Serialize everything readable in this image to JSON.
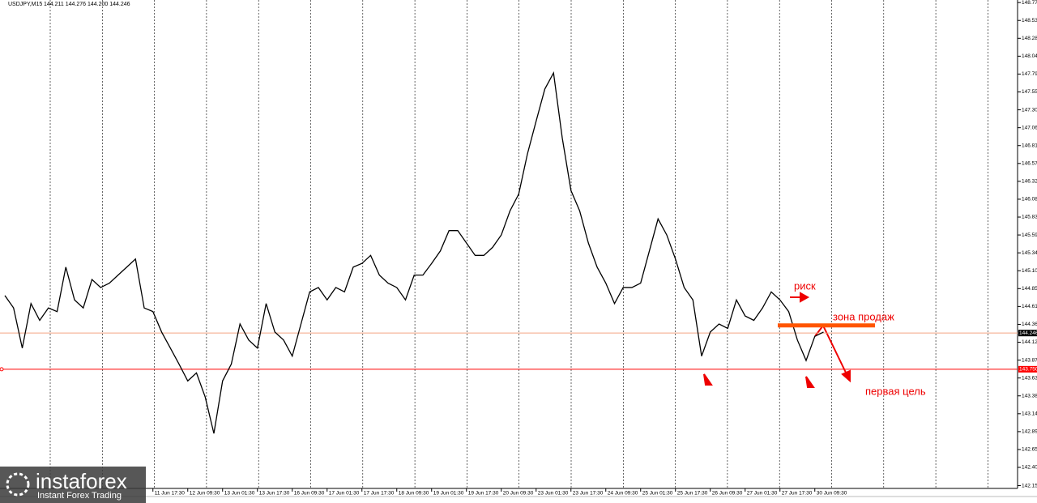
{
  "chart_data": {
    "type": "line",
    "title": "USDJPY,M15",
    "subtitle": "144.211 144.276 144.200 144.246",
    "categories": [
      null,
      null,
      null,
      null,
      null,
      null,
      null,
      null,
      null,
      null,
      null,
      null,
      null,
      null,
      null,
      null,
      null,
      "11 Jun 17:30",
      null,
      null,
      null,
      "12 Jun 09:30",
      null,
      null,
      null,
      "13 Jun 01:30",
      null,
      null,
      null,
      "13 Jun 17:30",
      null,
      null,
      null,
      "16 Jun 09:30",
      null,
      null,
      null,
      "17 Jun 01:30",
      null,
      null,
      null,
      "17 Jun 17:30",
      null,
      null,
      null,
      "18 Jun 09:30",
      null,
      null,
      null,
      "19 Jun 01:30",
      null,
      null,
      null,
      "19 Jun 17:30",
      null,
      null,
      null,
      "20 Jun 09:30",
      null,
      null,
      null,
      "23 Jun 01:30",
      null,
      null,
      null,
      "23 Jun 17:30",
      null,
      null,
      null,
      "24 Jun 09:30",
      null,
      null,
      null,
      "25 Jun 01:30",
      null,
      null,
      null,
      "25 Jun 17:30",
      null,
      null,
      null,
      "26 Jun 09:30",
      null,
      null,
      null,
      "27 Jun 01:30",
      null,
      null,
      null,
      "27 Jun 17:30",
      null,
      null,
      null,
      "30 Jun 09:30",
      null
    ],
    "series": [
      {
        "name": "USDJPY",
        "color": "#000000",
        "values": [
          144.76,
          144.59,
          144.04,
          144.65,
          144.42,
          144.59,
          144.54,
          145.15,
          144.7,
          144.59,
          144.98,
          144.87,
          144.93,
          145.04,
          145.15,
          145.26,
          144.59,
          144.54,
          144.26,
          144.04,
          143.82,
          143.59,
          143.7,
          143.37,
          142.87,
          143.59,
          143.82,
          144.37,
          144.15,
          144.04,
          144.65,
          144.26,
          144.15,
          143.93,
          144.37,
          144.81,
          144.87,
          144.7,
          144.87,
          144.81,
          145.15,
          145.2,
          145.31,
          145.04,
          144.93,
          144.87,
          144.7,
          145.04,
          145.04,
          145.2,
          145.37,
          145.65,
          145.65,
          145.48,
          145.31,
          145.31,
          145.42,
          145.59,
          145.92,
          146.15,
          146.7,
          147.15,
          147.59,
          147.81,
          146.92,
          146.2,
          145.92,
          145.48,
          145.15,
          144.93,
          144.65,
          144.87,
          144.87,
          144.93,
          145.37,
          145.81,
          145.59,
          145.26,
          144.87,
          144.7,
          143.93,
          144.26,
          144.37,
          144.31,
          144.7,
          144.48,
          144.42,
          144.59,
          144.81,
          144.7,
          144.54,
          144.15,
          143.87,
          144.2,
          144.26
        ]
      }
    ],
    "ylim": [
      142.15,
      148.81
    ],
    "yticks": [
      148.775,
      {
        "value": 148.53,
        "label": "148.530"
      },
      148.285,
      {
        "value": 148.04,
        "label": "148.040"
      },
      147.795,
      {
        "value": 147.55,
        "label": "147.550"
      },
      147.305,
      {
        "value": 147.06,
        "label": "147.060"
      },
      146.815,
      {
        "value": 146.57,
        "label": "146.570"
      },
      146.325,
      {
        "value": 146.08,
        "label": "146.080"
      },
      145.835,
      {
        "value": 145.59,
        "label": "145.590"
      },
      145.345,
      {
        "value": 145.1,
        "label": "145.100"
      },
      144.855,
      {
        "value": 144.61,
        "label": "144.610"
      },
      144.365,
      {
        "value": 144.12,
        "label": "144.120"
      },
      143.875,
      {
        "value": 143.63,
        "label": "143.630"
      },
      143.385,
      {
        "value": 143.14,
        "label": "143.140"
      },
      142.895,
      {
        "value": 142.65,
        "label": "142.650"
      },
      142.405,
      142.155
    ],
    "levels": [
      {
        "value": 143.75,
        "label": "143.750",
        "color": "#ff0000"
      }
    ],
    "current_price": {
      "value": 144.246,
      "label": "144.246",
      "color": "#f4a582"
    },
    "sell_zone": {
      "value": 144.35,
      "color": "#ff5500"
    },
    "annotations": [
      "риск",
      "зона продаж",
      "первая цель"
    ],
    "logo": {
      "name": "instaforex",
      "tagline": "Instant Forex Trading"
    }
  }
}
